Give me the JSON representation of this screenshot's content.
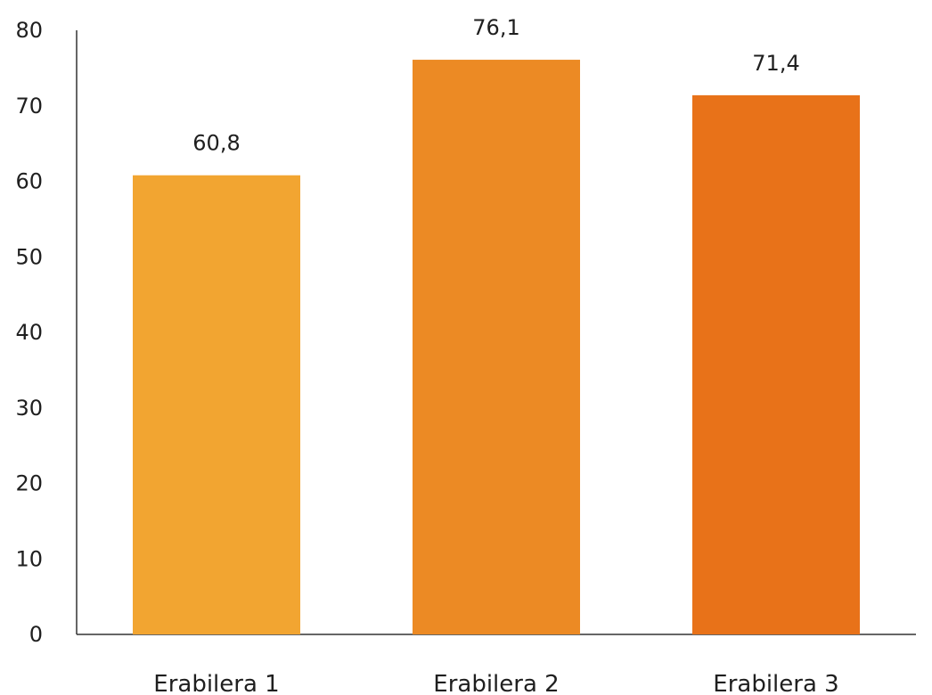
{
  "chart_data": {
    "type": "bar",
    "categories": [
      "Erabilera 1",
      "Erabilera 2",
      "Erabilera 3"
    ],
    "values": [
      60.8,
      76.1,
      71.4
    ],
    "value_labels": [
      "60,8",
      "76,1",
      "71,4"
    ],
    "colors": [
      "#f2a531",
      "#ec8a24",
      "#e87219"
    ],
    "ylim": [
      0,
      80
    ],
    "yticks": [
      0,
      10,
      20,
      30,
      40,
      50,
      60,
      70,
      80
    ],
    "ytick_labels": [
      "0",
      "10",
      "20",
      "30",
      "40",
      "50",
      "60",
      "70",
      "80"
    ],
    "title": "",
    "xlabel": "",
    "ylabel": "",
    "grid": false,
    "legend": "none"
  }
}
